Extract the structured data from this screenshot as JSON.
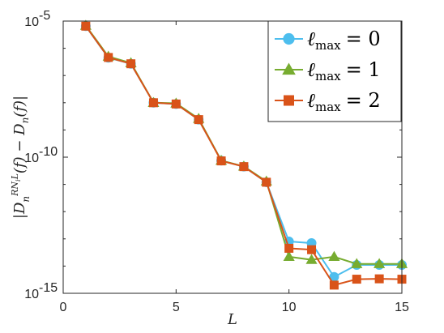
{
  "chart_data": {
    "type": "line",
    "xlabel": "L",
    "ylabel": "|D_n^{RN_iL}(f) − D_n(f)|",
    "ylabel_parts": {
      "base": "|D",
      "sub": "n",
      "sup": "RN",
      "supsub": "i",
      "supend": "L",
      "rest": "(f) − D",
      "sub2": "n",
      "tail": "(f)|"
    },
    "xlim": [
      0,
      15
    ],
    "ylim": [
      1e-15,
      1e-05
    ],
    "yscale": "log",
    "xticks": [
      0,
      5,
      10,
      15
    ],
    "xtick_labels": [
      "0",
      "5",
      "10",
      "15"
    ],
    "yticks": [
      1e-15,
      1e-10,
      1e-05
    ],
    "ytick_labels": [
      {
        "base": "10",
        "exp": "-15"
      },
      {
        "base": "10",
        "exp": "-10"
      },
      {
        "base": "10",
        "exp": "-5"
      }
    ],
    "legend_position": "top-right",
    "x": [
      1,
      2,
      3,
      4,
      5,
      6,
      7,
      8,
      9,
      10,
      11,
      12,
      13,
      14,
      15
    ],
    "series": [
      {
        "name": "ℓmax = 0",
        "name_parts": {
          "l": "ℓ",
          "sub": "max",
          "eq": "= 0"
        },
        "color": "#4DBEEE",
        "marker": "circle",
        "values": [
          6.5e-06,
          4.5e-07,
          2.7e-07,
          1e-08,
          9e-09,
          2.4e-09,
          7.5e-11,
          4.5e-11,
          1.2e-11,
          8e-14,
          7e-14,
          4e-15,
          1.1e-14,
          1.1e-14,
          1.1e-14
        ]
      },
      {
        "name": "ℓmax = 1",
        "name_parts": {
          "l": "ℓ",
          "sub": "max",
          "eq": "= 1"
        },
        "color": "#77AC30",
        "marker": "triangle",
        "values": [
          6.8e-06,
          5e-07,
          2.9e-07,
          1e-08,
          9.5e-09,
          2.6e-09,
          7.5e-11,
          4.6e-11,
          1.3e-11,
          2.2e-14,
          1.7e-14,
          2.2e-14,
          1.2e-14,
          1.2e-14,
          1.2e-14
        ]
      },
      {
        "name": "ℓmax = 2",
        "name_parts": {
          "l": "ℓ",
          "sub": "max",
          "eq": "= 2"
        },
        "color": "#D95319",
        "marker": "square",
        "values": [
          6.5e-06,
          4.6e-07,
          2.7e-07,
          1e-08,
          9e-09,
          2.4e-09,
          7.3e-11,
          4.5e-11,
          1.2e-11,
          4.5e-14,
          4e-14,
          2e-15,
          3.3e-15,
          3.4e-15,
          3.3e-15
        ]
      }
    ]
  }
}
